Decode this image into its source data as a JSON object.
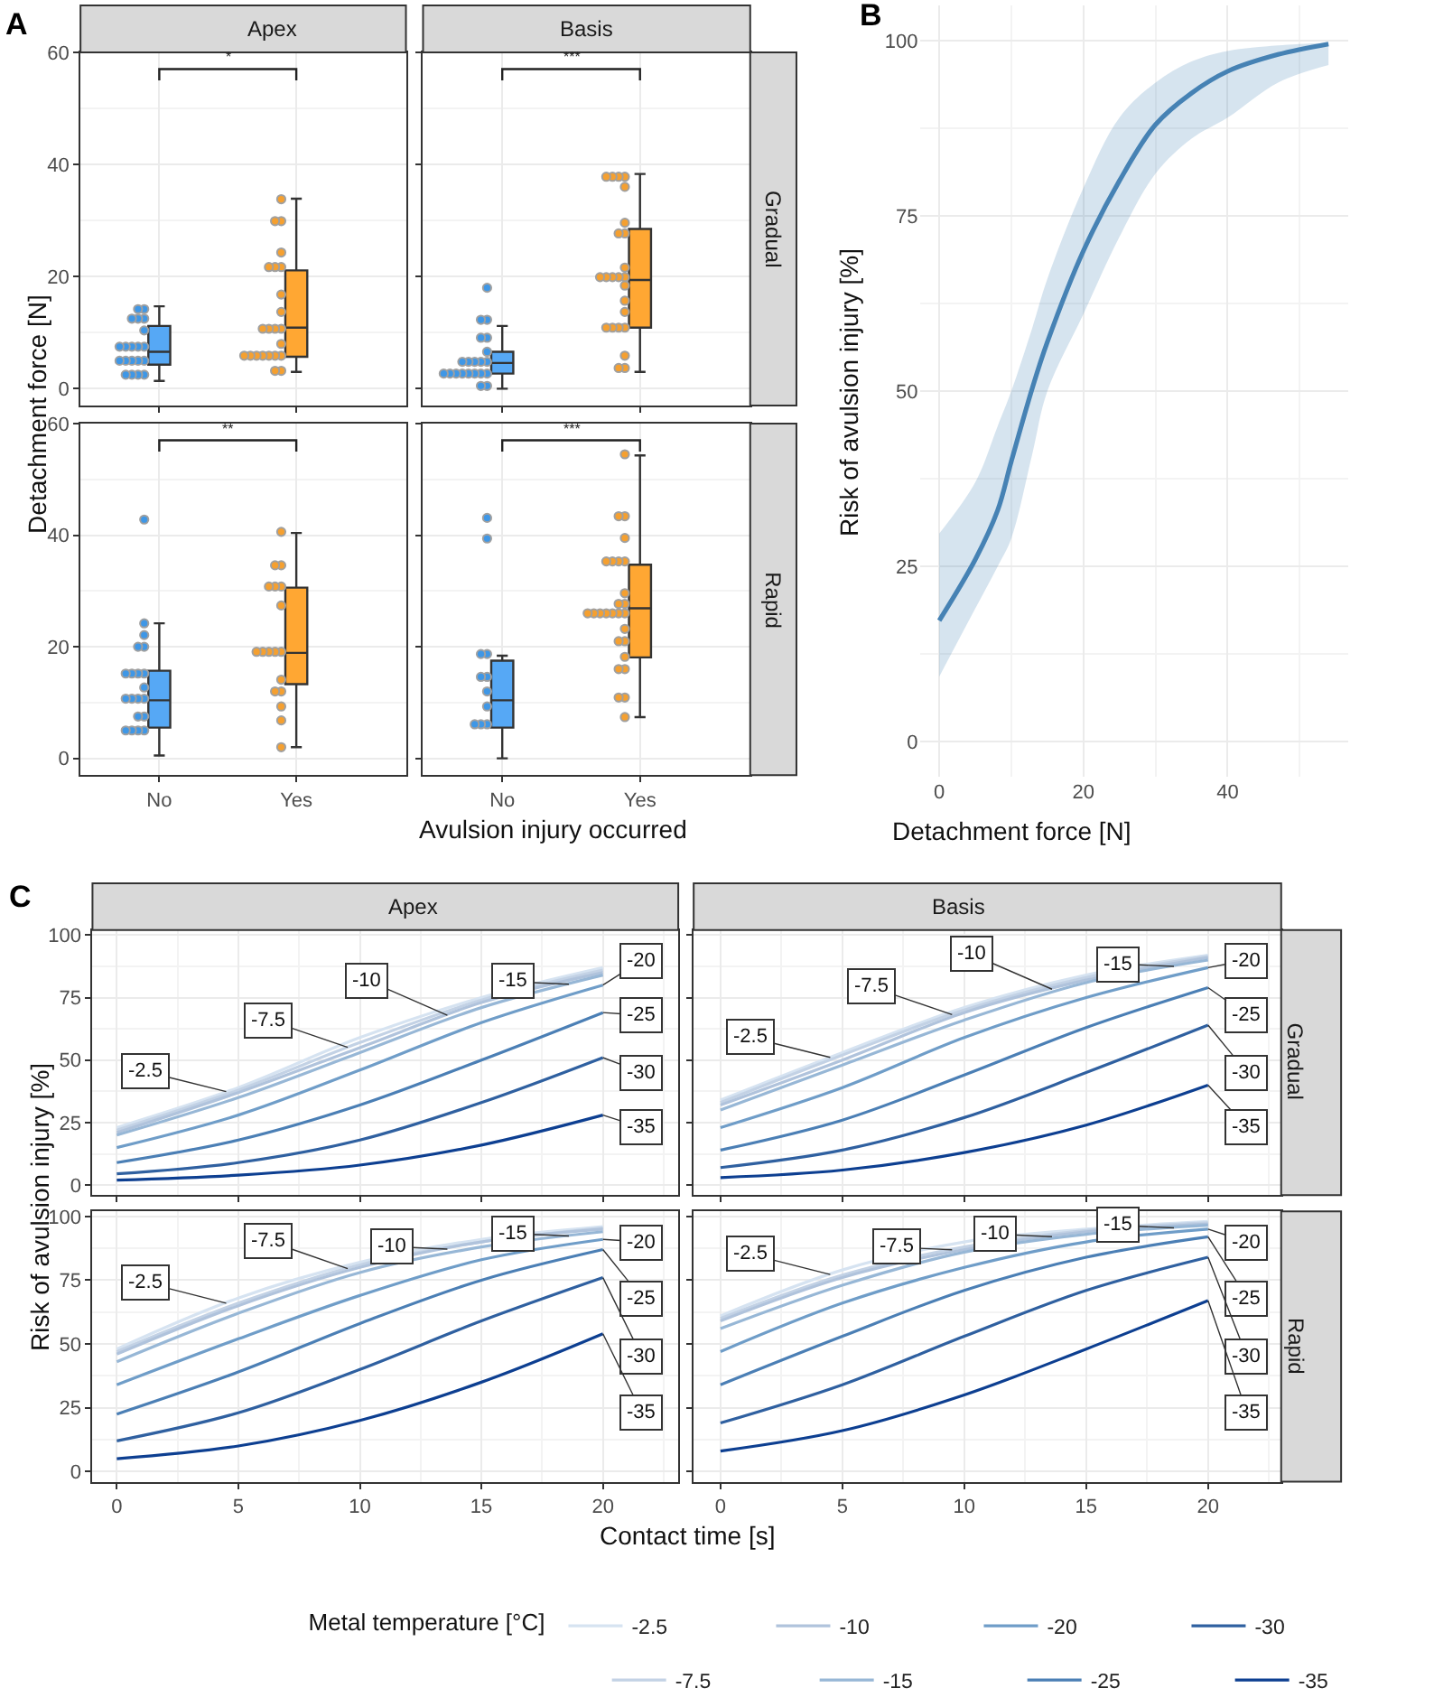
{
  "chart_data": [
    {
      "type": "box",
      "title": "Apex",
      "annotations": [
        "A",
        "*"
      ],
      "ylabel": "Detachment force [N]",
      "categories": [
        "No",
        "Yes"
      ],
      "colors": [
        "#56a8f5",
        "#ffa733"
      ],
      "boxes": [
        {
          "low": 1.4,
          "q1": 4.3,
          "median": 6.6,
          "q3": 11.2,
          "high": 14.7
        },
        {
          "low": 3,
          "q1": 5.7,
          "median": 10.9,
          "q3": 21.1,
          "high": 33.9
        }
      ],
      "series": [
        {
          "type": "scatter",
          "color": "#3f97e6",
          "x": [
            "No",
            "No",
            "No",
            "No",
            "No",
            "No",
            "No",
            "No",
            "No",
            "No",
            "No",
            "No",
            "No",
            "No",
            "No",
            "No",
            "No",
            "No",
            "No",
            "No"
          ],
          "values": [
            14.2,
            14.2,
            12.5,
            12.5,
            12.5,
            10.4,
            7.5,
            7.5,
            7.5,
            7.5,
            7.5,
            5,
            5,
            5,
            5,
            5,
            2.5,
            2.5,
            2.5,
            2.5
          ]
        },
        {
          "type": "scatter",
          "color": "#f5a030",
          "x": [
            "Yes",
            "Yes",
            "Yes",
            "Yes",
            "Yes",
            "Yes",
            "Yes",
            "Yes",
            "Yes",
            "Yes",
            "Yes",
            "Yes",
            "Yes",
            "Yes",
            "Yes",
            "Yes",
            "Yes",
            "Yes",
            "Yes",
            "Yes",
            "Yes",
            "Yes",
            "Yes"
          ],
          "values": [
            33.8,
            29.9,
            29.9,
            24.3,
            21.7,
            21.7,
            21.7,
            16.8,
            13.7,
            10.7,
            10.7,
            10.7,
            10.7,
            8,
            5.9,
            5.9,
            5.9,
            5.9,
            5.9,
            5.9,
            5.9,
            3.2,
            3.2
          ]
        }
      ],
      "ylim": [
        -3,
        60
      ],
      "yticks": [
        0,
        20,
        40,
        60
      ],
      "grid": true,
      "tick_labels": "y"
    },
    {
      "type": "box",
      "title": "Basis",
      "subtitle": "Gradual",
      "annotations": [
        "***"
      ],
      "categories": [
        "No",
        "Yes"
      ],
      "colors": [
        "#56a8f5",
        "#ffa733"
      ],
      "boxes": [
        {
          "low": 0,
          "q1": 2.7,
          "median": 4.6,
          "q3": 6.6,
          "high": 11.2
        },
        {
          "low": 3,
          "q1": 10.9,
          "median": 19.4,
          "q3": 28.5,
          "high": 38.3
        }
      ],
      "series": [
        {
          "type": "scatter",
          "color": "#3f97e6",
          "x": [
            "No",
            "No",
            "No",
            "No",
            "No",
            "No",
            "No",
            "No",
            "No",
            "No",
            "No",
            "No",
            "No",
            "No",
            "No",
            "No",
            "No",
            "No",
            "No",
            "No",
            "No"
          ],
          "values": [
            18,
            12.3,
            12.3,
            9.1,
            9.1,
            6.6,
            4.8,
            4.8,
            4.8,
            4.8,
            4.8,
            2.7,
            2.7,
            2.7,
            2.7,
            2.7,
            2.7,
            2.7,
            2.7,
            0.5,
            0.5
          ]
        },
        {
          "type": "scatter",
          "color": "#f5a030",
          "x": [
            "Yes",
            "Yes",
            "Yes",
            "Yes",
            "Yes",
            "Yes",
            "Yes",
            "Yes",
            "Yes",
            "Yes",
            "Yes",
            "Yes",
            "Yes",
            "Yes",
            "Yes",
            "Yes",
            "Yes",
            "Yes",
            "Yes",
            "Yes",
            "Yes",
            "Yes",
            "Yes",
            "Yes"
          ],
          "values": [
            37.8,
            37.8,
            37.8,
            37.8,
            36,
            29.6,
            27.7,
            27.7,
            21.6,
            19.9,
            19.9,
            19.9,
            19.9,
            19.9,
            18.4,
            15.7,
            13.7,
            10.9,
            10.9,
            10.9,
            10.9,
            5.9,
            3.7,
            3.7
          ]
        }
      ],
      "ylim": [
        -3,
        60
      ],
      "yticks": [
        0,
        20,
        40,
        60
      ],
      "grid": true,
      "tick_labels": false
    },
    {
      "type": "box",
      "annotations": [
        "**"
      ],
      "xlabel": "Avulsion injury occurred",
      "categories": [
        "No",
        "Yes"
      ],
      "colors": [
        "#56a8f5",
        "#ffa733"
      ],
      "boxes": [
        {
          "low": 0.5,
          "q1": 5.5,
          "median": 10.4,
          "q3": 15.7,
          "high": 24.2
        },
        {
          "low": 2,
          "q1": 13.3,
          "median": 18.9,
          "q3": 30.6,
          "high": 40.4
        }
      ],
      "series": [
        {
          "type": "scatter",
          "color": "#3f97e6",
          "x": [
            "No",
            "No",
            "No",
            "No",
            "No",
            "No",
            "No",
            "No",
            "No",
            "No",
            "No",
            "No",
            "No",
            "No",
            "No",
            "No",
            "No",
            "No",
            "No",
            "No"
          ],
          "values": [
            42.8,
            24.2,
            22.1,
            20,
            20,
            15.2,
            15.2,
            15.2,
            15.2,
            12.7,
            10.7,
            10.7,
            10.7,
            10.7,
            7.5,
            7.5,
            5,
            5,
            5,
            5
          ]
        },
        {
          "type": "scatter",
          "color": "#f5a030",
          "x": [
            "Yes",
            "Yes",
            "Yes",
            "Yes",
            "Yes",
            "Yes",
            "Yes",
            "Yes",
            "Yes",
            "Yes",
            "Yes",
            "Yes",
            "Yes",
            "Yes",
            "Yes",
            "Yes",
            "Yes",
            "Yes"
          ],
          "values": [
            40.6,
            34.6,
            34.6,
            30.8,
            30.8,
            30.8,
            27.4,
            19.1,
            19.1,
            19.1,
            19.1,
            19.1,
            14.1,
            12,
            12,
            9.3,
            6.8,
            2
          ]
        }
      ],
      "ylim": [
        -3,
        60
      ],
      "yticks": [
        0,
        20,
        40,
        60
      ],
      "grid": true
    },
    {
      "type": "box",
      "subtitle": "Rapid",
      "annotations": [
        "***"
      ],
      "categories": [
        "No",
        "Yes"
      ],
      "colors": [
        "#56a8f5",
        "#ffa733"
      ],
      "boxes": [
        {
          "low": 0,
          "q1": 5.5,
          "median": 10.4,
          "q3": 17.5,
          "high": 18.4
        },
        {
          "low": 7.4,
          "q1": 18.1,
          "median": 26.9,
          "q3": 34.7,
          "high": 54.3
        }
      ],
      "series": [
        {
          "type": "scatter",
          "color": "#3f97e6",
          "x": [
            "No",
            "No",
            "No",
            "No",
            "No",
            "No",
            "No",
            "No",
            "No",
            "No",
            "No"
          ],
          "values": [
            43.1,
            39.4,
            18.7,
            18.7,
            14.6,
            14.6,
            12,
            9.3,
            6.1,
            6.1,
            6.1
          ]
        },
        {
          "type": "scatter",
          "color": "#f5a030",
          "x": [
            "Yes",
            "Yes",
            "Yes",
            "Yes",
            "Yes",
            "Yes",
            "Yes",
            "Yes",
            "Yes",
            "Yes",
            "Yes",
            "Yes",
            "Yes",
            "Yes",
            "Yes",
            "Yes",
            "Yes",
            "Yes",
            "Yes",
            "Yes",
            "Yes",
            "Yes",
            "Yes",
            "Yes",
            "Yes",
            "Yes",
            "Yes"
          ],
          "values": [
            54.5,
            43.4,
            43.4,
            39.5,
            35.3,
            35.3,
            35.3,
            35.3,
            29.6,
            27.7,
            27.7,
            26,
            26,
            26,
            26,
            26,
            26,
            26,
            23.2,
            21,
            21,
            18.2,
            16,
            16,
            10.9,
            10.9,
            7.4
          ]
        }
      ],
      "ylim": [
        -3,
        60
      ],
      "yticks": [
        0,
        20,
        40,
        60
      ],
      "grid": true,
      "tick_labels": "x"
    },
    {
      "type": "line",
      "annotations": [
        "B"
      ],
      "xlabel": "Detachment force [N]",
      "ylabel": "Risk of avulsion injury [%]",
      "x": [
        0,
        5,
        8.1,
        10,
        12.9,
        15,
        20,
        25,
        30,
        35,
        40,
        47,
        54
      ],
      "series": [
        {
          "color": "#4682b4",
          "values": [
            17.3,
            26,
            33,
            40,
            50.4,
            57,
            70,
            80,
            88,
            92.5,
            95.6,
            98,
            99.5
          ],
          "lower": [
            9.3,
            19,
            25,
            29,
            41,
            50,
            61,
            72,
            81,
            86,
            89,
            94,
            96.5
          ],
          "upper": [
            29.7,
            37,
            45,
            50,
            59,
            66,
            79,
            89,
            94,
            97,
            98.5,
            99.3,
            99.7
          ]
        }
      ],
      "xlim": [
        -2.7,
        56.7
      ],
      "xticks": [
        0,
        20,
        40
      ],
      "ylim": [
        -5,
        105
      ],
      "yticks": [
        0,
        25,
        50,
        75,
        100
      ],
      "grid": true
    },
    {
      "type": "line",
      "title": "Apex",
      "annotations": [
        "C"
      ],
      "ylabel": "Risk of avulsion injury [%]",
      "legend_title": "Metal temperature [°C]",
      "legend": "bottom",
      "x": [
        0,
        5,
        10,
        15,
        20
      ],
      "series": [
        {
          "name": "-2.5",
          "color": "#d6e3f1",
          "values": [
            23,
            39,
            59,
            75,
            87
          ]
        },
        {
          "name": "-7.5",
          "color": "#c3d2e5",
          "values": [
            22,
            38,
            57,
            74,
            86
          ]
        },
        {
          "name": "-10",
          "color": "#b0c3dc",
          "values": [
            21,
            37,
            55,
            73,
            85
          ]
        },
        {
          "name": "-15",
          "color": "#97b7d6",
          "values": [
            20,
            35,
            53,
            71,
            84
          ]
        },
        {
          "name": "-20",
          "color": "#6f9dc8",
          "values": [
            15,
            28,
            46,
            65,
            80
          ]
        },
        {
          "name": "-25",
          "color": "#4b7fb5",
          "values": [
            9,
            18,
            32,
            50,
            69
          ]
        },
        {
          "name": "-30",
          "color": "#2f60a0",
          "values": [
            4.5,
            9,
            18,
            33,
            51
          ]
        },
        {
          "name": "-35",
          "color": "#0d3f91",
          "values": [
            2,
            4,
            8,
            16,
            28
          ]
        }
      ],
      "xlim": [
        -1,
        23.1
      ],
      "xticks": [
        0,
        5,
        10,
        15,
        20
      ],
      "ylim": [
        -4,
        102
      ],
      "yticks": [
        0,
        25,
        50,
        75,
        100
      ],
      "grid": true,
      "tick_labels": "y"
    },
    {
      "type": "line",
      "title": "Basis",
      "subtitle": "Gradual",
      "x": [
        0,
        5,
        10,
        15,
        20
      ],
      "series": [
        {
          "name": "-2.5",
          "color": "#d6e3f1",
          "values": [
            34,
            53,
            71,
            84,
            92
          ]
        },
        {
          "name": "-7.5",
          "color": "#c3d2e5",
          "values": [
            33,
            52,
            70,
            83,
            91.5
          ]
        },
        {
          "name": "-10",
          "color": "#b0c3dc",
          "values": [
            32,
            50,
            69,
            82,
            91
          ]
        },
        {
          "name": "-15",
          "color": "#97b7d6",
          "values": [
            30,
            48,
            66,
            81,
            90
          ]
        },
        {
          "name": "-20",
          "color": "#6f9dc8",
          "values": [
            23,
            39,
            59,
            75,
            87
          ]
        },
        {
          "name": "-25",
          "color": "#4b7fb5",
          "values": [
            14,
            26,
            44,
            63,
            79
          ]
        },
        {
          "name": "-30",
          "color": "#2f60a0",
          "values": [
            7,
            14,
            27,
            45,
            64
          ]
        },
        {
          "name": "-35",
          "color": "#0d3f91",
          "values": [
            3,
            6,
            13,
            24,
            40
          ]
        }
      ],
      "xlim": [
        -1.1,
        23
      ],
      "xticks": [
        0,
        5,
        10,
        15,
        20
      ],
      "ylim": [
        -4,
        102
      ],
      "yticks": [
        0,
        25,
        50,
        75,
        100
      ],
      "grid": true,
      "tick_labels": false
    },
    {
      "type": "line",
      "xlabel": "Contact time [s]",
      "x": [
        0,
        5,
        10,
        15,
        20
      ],
      "series": [
        {
          "name": "-2.5",
          "color": "#d6e3f1",
          "values": [
            48,
            68,
            82,
            91,
            96
          ]
        },
        {
          "name": "-7.5",
          "color": "#c3d2e5",
          "values": [
            47,
            66,
            81,
            90,
            95.5
          ]
        },
        {
          "name": "-10",
          "color": "#b0c3dc",
          "values": [
            46,
            65,
            80,
            90,
            95
          ]
        },
        {
          "name": "-15",
          "color": "#97b7d6",
          "values": [
            43,
            62,
            78,
            88,
            94
          ]
        },
        {
          "name": "-20",
          "color": "#6f9dc8",
          "values": [
            34,
            52,
            69,
            83,
            91
          ]
        },
        {
          "name": "-25",
          "color": "#4b7fb5",
          "values": [
            22.5,
            39,
            58,
            75,
            87
          ]
        },
        {
          "name": "-30",
          "color": "#2f60a0",
          "values": [
            12,
            23,
            40,
            59,
            76
          ]
        },
        {
          "name": "-35",
          "color": "#0d3f91",
          "values": [
            5,
            10,
            20,
            35,
            54
          ]
        }
      ],
      "xlim": [
        -1,
        23.1
      ],
      "xticks": [
        0,
        5,
        10,
        15,
        20
      ],
      "ylim": [
        -4,
        102
      ],
      "yticks": [
        0,
        25,
        50,
        75,
        100
      ],
      "grid": true
    },
    {
      "type": "line",
      "subtitle": "Rapid",
      "x": [
        0,
        5,
        10,
        15,
        20
      ],
      "series": [
        {
          "name": "-2.5",
          "color": "#d6e3f1",
          "values": [
            61,
            79,
            90,
            95,
            98
          ]
        },
        {
          "name": "-7.5",
          "color": "#c3d2e5",
          "values": [
            60,
            77,
            88,
            94.5,
            97.5
          ]
        },
        {
          "name": "-10",
          "color": "#b0c3dc",
          "values": [
            59,
            76,
            87,
            94,
            97
          ]
        },
        {
          "name": "-15",
          "color": "#97b7d6",
          "values": [
            56,
            73,
            86,
            93,
            96.5
          ]
        },
        {
          "name": "-20",
          "color": "#6f9dc8",
          "values": [
            47,
            66,
            80,
            90,
            95
          ]
        },
        {
          "name": "-25",
          "color": "#4b7fb5",
          "values": [
            34,
            53,
            71,
            84,
            92
          ]
        },
        {
          "name": "-30",
          "color": "#2f60a0",
          "values": [
            19,
            34,
            53,
            71,
            84
          ]
        },
        {
          "name": "-35",
          "color": "#0d3f91",
          "values": [
            8,
            16,
            30,
            48,
            67
          ]
        }
      ],
      "xlim": [
        -1.1,
        23
      ],
      "xticks": [
        0,
        5,
        10,
        15,
        20
      ],
      "ylim": [
        -4,
        102
      ],
      "yticks": [
        0,
        25,
        50,
        75,
        100
      ],
      "grid": true,
      "tick_labels": "x"
    }
  ]
}
